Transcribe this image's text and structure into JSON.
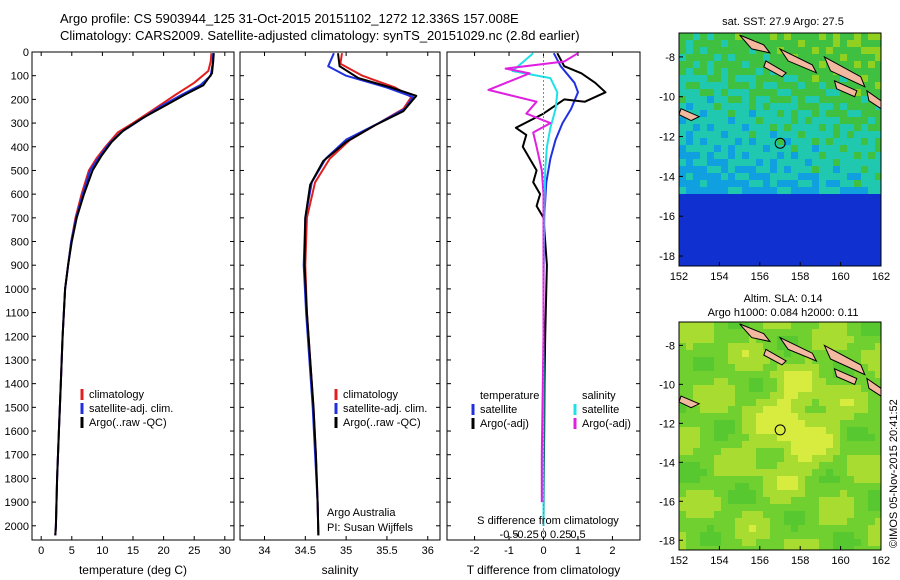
{
  "title": {
    "line1": "Argo profile: CS 5903944_125 31-Oct-2015 20151102_1272 12.336S 157.008E",
    "line2": "Climatology: CARS2009. Satellite-adjusted climatology: synTS_20151029.nc (2.8d earlier)"
  },
  "watermark": "©IMOS 05-Nov-2015 20:41:52",
  "colors": {
    "climatology": "#e02020",
    "satellite": "#2030e0",
    "argo": "#000000",
    "salinity_sat": "#20e0e8",
    "salinity_argo": "#e020e0",
    "land": "#f2b8a0"
  },
  "chart_data": [
    {
      "id": "temperature",
      "type": "line",
      "xlabel": "temperature (deg C)",
      "ylabel": "",
      "xlim": [
        -1.5,
        31.5
      ],
      "ylim": [
        2060,
        0
      ],
      "xticks": [
        0,
        5,
        10,
        15,
        20,
        25,
        30
      ],
      "xtick_labels": [
        "0",
        "5",
        "10",
        "15",
        "20",
        "25",
        "30"
      ],
      "yticks": [
        0,
        100,
        200,
        300,
        400,
        500,
        600,
        700,
        800,
        900,
        1000,
        1100,
        1200,
        1300,
        1400,
        1500,
        1600,
        1700,
        1800,
        1900,
        2000
      ],
      "ytick_labels": [
        "0",
        "100",
        "200",
        "300",
        "400",
        "500",
        "600",
        "700",
        "800",
        "900",
        "1000",
        "1100",
        "1200",
        "1300",
        "1400",
        "1500",
        "1600",
        "1700",
        "1800",
        "1900",
        "2000"
      ],
      "legend": [
        "climatology",
        "satellite-adj. clim.",
        "Argo(..raw -QC)"
      ],
      "series": [
        {
          "name": "climatology",
          "color": "#e02020",
          "points": [
            [
              27.8,
              5
            ],
            [
              27.7,
              40
            ],
            [
              27.3,
              80
            ],
            [
              25,
              130
            ],
            [
              22,
              180
            ],
            [
              18.5,
              240
            ],
            [
              15,
              300
            ],
            [
              12.5,
              340
            ],
            [
              10.5,
              400
            ],
            [
              9,
              450
            ],
            [
              7.8,
              500
            ],
            [
              6.6,
              600
            ],
            [
              5.6,
              700
            ],
            [
              4.9,
              800
            ],
            [
              4.4,
              900
            ],
            [
              3.9,
              1000
            ],
            [
              3.5,
              1200
            ],
            [
              3.2,
              1400
            ],
            [
              2.9,
              1600
            ],
            [
              2.6,
              1800
            ],
            [
              2.4,
              2000
            ],
            [
              2.3,
              2040
            ]
          ]
        },
        {
          "name": "satellite",
          "color": "#2030e0",
          "points": [
            [
              28.1,
              5
            ],
            [
              28.0,
              50
            ],
            [
              27.7,
              100
            ],
            [
              26,
              140
            ],
            [
              23,
              180
            ],
            [
              19.5,
              230
            ],
            [
              16,
              290
            ],
            [
              13,
              340
            ],
            [
              11,
              390
            ],
            [
              9.3,
              450
            ],
            [
              8,
              500
            ],
            [
              6.8,
              600
            ],
            [
              5.7,
              700
            ],
            [
              4.9,
              800
            ],
            [
              4.4,
              900
            ],
            [
              3.9,
              1000
            ],
            [
              3.5,
              1200
            ],
            [
              3.2,
              1400
            ],
            [
              2.9,
              1600
            ],
            [
              2.6,
              1800
            ],
            [
              2.4,
              2000
            ],
            [
              2.3,
              2040
            ]
          ]
        },
        {
          "name": "argo",
          "color": "#000000",
          "points": [
            [
              28.2,
              5
            ],
            [
              28.1,
              40
            ],
            [
              27.9,
              90
            ],
            [
              26.5,
              140
            ],
            [
              23.5,
              180
            ],
            [
              20,
              230
            ],
            [
              16.5,
              280
            ],
            [
              13.5,
              330
            ],
            [
              11.5,
              380
            ],
            [
              9.8,
              440
            ],
            [
              8.4,
              500
            ],
            [
              7,
              600
            ],
            [
              5.8,
              700
            ],
            [
              5,
              800
            ],
            [
              4.4,
              900
            ],
            [
              3.9,
              1000
            ],
            [
              3.5,
              1200
            ],
            [
              3.2,
              1400
            ],
            [
              2.9,
              1600
            ],
            [
              2.6,
              1800
            ],
            [
              2.4,
              2000
            ],
            [
              2.3,
              2040
            ]
          ]
        }
      ]
    },
    {
      "id": "salinity",
      "type": "line",
      "xlabel": "salinity",
      "ylabel": "",
      "xlim": [
        33.7,
        36.15
      ],
      "ylim": [
        2060,
        0
      ],
      "xticks": [
        34,
        34.5,
        35,
        35.5,
        36
      ],
      "xtick_labels": [
        "34",
        "34.5",
        "35",
        "35.5",
        "36"
      ],
      "legend": [
        "climatology",
        "satellite-adj. clim.",
        "Argo(..raw -QC)"
      ],
      "annotation": [
        "Argo Australia",
        "PI: Susan Wijffels"
      ],
      "series": [
        {
          "name": "climatology",
          "color": "#e02020",
          "points": [
            [
              34.95,
              5
            ],
            [
              34.93,
              50
            ],
            [
              35.2,
              100
            ],
            [
              35.6,
              150
            ],
            [
              35.8,
              190
            ],
            [
              35.7,
              240
            ],
            [
              35.4,
              300
            ],
            [
              35.05,
              370
            ],
            [
              34.8,
              450
            ],
            [
              34.62,
              550
            ],
            [
              34.52,
              700
            ],
            [
              34.5,
              900
            ],
            [
              34.52,
              1100
            ],
            [
              34.56,
              1300
            ],
            [
              34.6,
              1500
            ],
            [
              34.63,
              1700
            ],
            [
              34.65,
              1900
            ],
            [
              34.66,
              2040
            ]
          ]
        },
        {
          "name": "satellite",
          "color": "#2030e0",
          "points": [
            [
              34.85,
              5
            ],
            [
              34.78,
              60
            ],
            [
              35.0,
              100
            ],
            [
              35.5,
              150
            ],
            [
              35.82,
              190
            ],
            [
              35.72,
              240
            ],
            [
              35.4,
              300
            ],
            [
              35.0,
              370
            ],
            [
              34.75,
              450
            ],
            [
              34.58,
              550
            ],
            [
              34.5,
              700
            ],
            [
              34.48,
              900
            ],
            [
              34.51,
              1100
            ],
            [
              34.55,
              1300
            ],
            [
              34.59,
              1500
            ],
            [
              34.62,
              1700
            ],
            [
              34.65,
              1900
            ],
            [
              34.66,
              2040
            ]
          ]
        },
        {
          "name": "argo",
          "color": "#000000",
          "points": [
            [
              34.9,
              5
            ],
            [
              34.92,
              60
            ],
            [
              35.15,
              110
            ],
            [
              35.55,
              150
            ],
            [
              35.86,
              185
            ],
            [
              35.7,
              250
            ],
            [
              35.35,
              310
            ],
            [
              35.0,
              380
            ],
            [
              34.72,
              460
            ],
            [
              34.56,
              560
            ],
            [
              34.5,
              700
            ],
            [
              34.49,
              900
            ],
            [
              34.52,
              1100
            ],
            [
              34.56,
              1300
            ],
            [
              34.6,
              1500
            ],
            [
              34.63,
              1700
            ],
            [
              34.65,
              1900
            ],
            [
              34.66,
              2040
            ]
          ]
        }
      ]
    },
    {
      "id": "difference",
      "type": "line",
      "xlabel": "T difference from climatology",
      "xlabel_top": "S difference from climatology",
      "ylabel": "",
      "xlim": [
        -2.8,
        2.8
      ],
      "ylim": [
        2060,
        0
      ],
      "xticks": [
        -2,
        -1,
        0,
        1,
        2
      ],
      "xtick_labels": [
        "-2",
        "-1",
        "0",
        "1",
        "2"
      ],
      "sticks": [
        -1,
        -0.5,
        0,
        0.5,
        1
      ],
      "stick_labels": [
        "-0.5",
        "-0.25",
        "0",
        "0.25",
        "0.5"
      ],
      "legend_temperature": [
        "temperature",
        "satellite",
        "Argo(-adj)"
      ],
      "legend_salinity": [
        "salinity",
        "satellite",
        "Argo(-adj)"
      ],
      "series": [
        {
          "name": "T satellite",
          "color": "#2030e0",
          "points": [
            [
              0.3,
              5
            ],
            [
              0.5,
              60
            ],
            [
              0.9,
              130
            ],
            [
              1.0,
              170
            ],
            [
              0.8,
              240
            ],
            [
              0.55,
              300
            ],
            [
              0.35,
              370
            ],
            [
              0.2,
              450
            ],
            [
              0.08,
              550
            ],
            [
              0.02,
              700
            ],
            [
              0.0,
              900
            ],
            [
              0.0,
              1200
            ],
            [
              0.0,
              1600
            ],
            [
              0.0,
              2000
            ]
          ]
        },
        {
          "name": "T argo",
          "color": "#000000",
          "points": [
            [
              0.4,
              5
            ],
            [
              0.6,
              60
            ],
            [
              1.1,
              90
            ],
            [
              1.5,
              130
            ],
            [
              1.8,
              170
            ],
            [
              1.2,
              210
            ],
            [
              0.6,
              200
            ],
            [
              0.0,
              260
            ],
            [
              -0.8,
              320
            ],
            [
              -0.5,
              350
            ],
            [
              -0.6,
              400
            ],
            [
              -0.4,
              450
            ],
            [
              -0.2,
              500
            ],
            [
              -0.3,
              550
            ],
            [
              -0.1,
              600
            ],
            [
              -0.2,
              650
            ],
            [
              0.0,
              700
            ],
            [
              0.05,
              800
            ],
            [
              0.1,
              900
            ],
            [
              0.08,
              1000
            ],
            [
              0.05,
              1200
            ],
            [
              0.03,
              1400
            ],
            [
              0.02,
              1600
            ],
            [
              0.01,
              1800
            ],
            [
              0.0,
              2000
            ]
          ]
        },
        {
          "name": "S satellite",
          "color": "#20e0e8",
          "points": [
            [
              -0.3,
              5
            ],
            [
              -0.9,
              80
            ],
            [
              0.2,
              110
            ],
            [
              0.4,
              170
            ],
            [
              0.35,
              240
            ],
            [
              0.2,
              320
            ],
            [
              0.1,
              400
            ],
            [
              0.05,
              500
            ],
            [
              0.02,
              700
            ],
            [
              0.0,
              1000
            ],
            [
              0.0,
              1500
            ],
            [
              0.0,
              2000
            ]
          ]
        },
        {
          "name": "S argo",
          "color": "#e020e0",
          "points": [
            [
              1.0,
              5
            ],
            [
              0.6,
              40
            ],
            [
              -1.1,
              70
            ],
            [
              -0.4,
              90
            ],
            [
              -1.6,
              160
            ],
            [
              -0.2,
              210
            ],
            [
              -0.5,
              260
            ],
            [
              0.2,
              300
            ],
            [
              -0.3,
              340
            ],
            [
              -0.2,
              400
            ],
            [
              -0.05,
              500
            ],
            [
              0.0,
              600
            ],
            [
              0.0,
              800
            ],
            [
              0.0,
              1200
            ],
            [
              -0.05,
              1700
            ],
            [
              -0.05,
              1900
            ]
          ]
        }
      ]
    },
    {
      "id": "sst_map",
      "type": "heatmap",
      "title": "sat. SST: 27.9 Argo: 27.5",
      "xlim": [
        152,
        162
      ],
      "ylim": [
        -18.5,
        -6.8
      ],
      "xticks": [
        152,
        154,
        156,
        158,
        160,
        162
      ],
      "xtick_labels": [
        "152",
        "154",
        "156",
        "158",
        "160",
        "162"
      ],
      "yticks": [
        -8,
        -10,
        -12,
        -14,
        -16,
        -18
      ],
      "ytick_labels": [
        "-8",
        "-10",
        "-12",
        "-14",
        "-16",
        "-18"
      ],
      "marker": [
        157.008,
        -12.336
      ]
    },
    {
      "id": "sla_map",
      "type": "heatmap",
      "title_line1": "Altim. SLA: 0.14",
      "title_line2": "Argo h1000: 0.084 h2000: 0.11",
      "xlim": [
        152,
        162
      ],
      "ylim": [
        -18.5,
        -6.8
      ],
      "xticks": [
        152,
        154,
        156,
        158,
        160,
        162
      ],
      "xtick_labels": [
        "152",
        "154",
        "156",
        "158",
        "160",
        "162"
      ],
      "yticks": [
        -8,
        -10,
        -12,
        -14,
        -16,
        -18
      ],
      "ytick_labels": [
        "-8",
        "-10",
        "-12",
        "-14",
        "-16",
        "-18"
      ],
      "marker": [
        157.008,
        -12.336
      ]
    }
  ]
}
